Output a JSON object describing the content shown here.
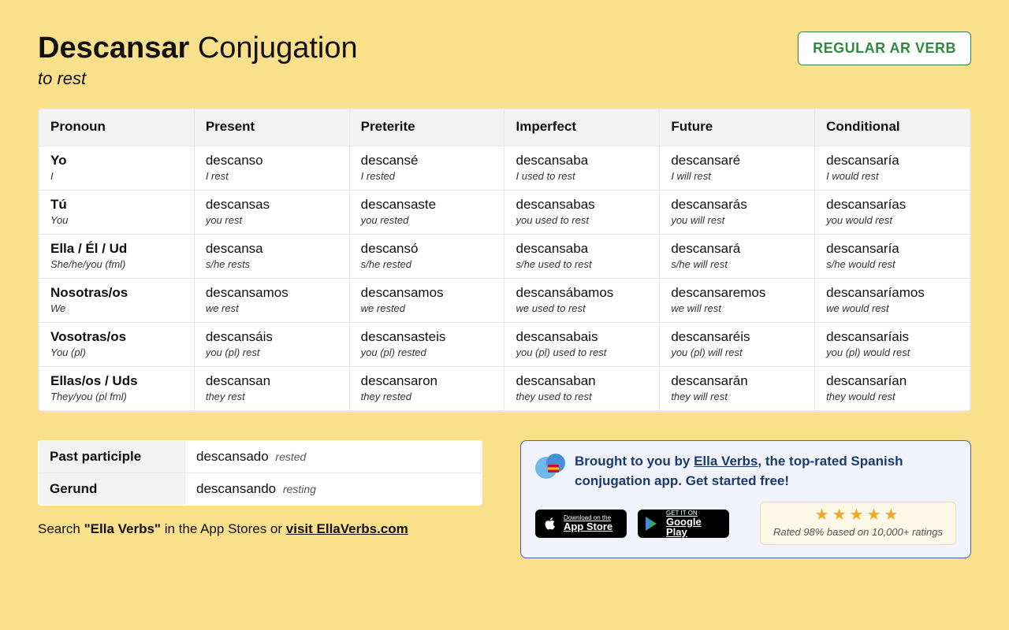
{
  "header": {
    "verb": "Descansar",
    "title_suffix": "Conjugation",
    "translation": "to rest",
    "badge": "REGULAR AR VERB"
  },
  "columns": [
    "Pronoun",
    "Present",
    "Preterite",
    "Imperfect",
    "Future",
    "Conditional"
  ],
  "rows": [
    [
      {
        "main": "Yo",
        "sub": "I"
      },
      {
        "main": "descanso",
        "sub": "I rest"
      },
      {
        "main": "descansé",
        "sub": "I rested"
      },
      {
        "main": "descansaba",
        "sub": "I used to rest"
      },
      {
        "main": "descansaré",
        "sub": "I will rest"
      },
      {
        "main": "descansaría",
        "sub": "I would rest"
      }
    ],
    [
      {
        "main": "Tú",
        "sub": "You"
      },
      {
        "main": "descansas",
        "sub": "you rest"
      },
      {
        "main": "descansaste",
        "sub": "you rested"
      },
      {
        "main": "descansabas",
        "sub": "you used to rest"
      },
      {
        "main": "descansarás",
        "sub": "you will rest"
      },
      {
        "main": "descansarías",
        "sub": "you would rest"
      }
    ],
    [
      {
        "main": "Ella / Él / Ud",
        "sub": "She/he/you (fml)"
      },
      {
        "main": "descansa",
        "sub": "s/he rests"
      },
      {
        "main": "descansó",
        "sub": "s/he rested"
      },
      {
        "main": "descansaba",
        "sub": "s/he used to rest"
      },
      {
        "main": "descansará",
        "sub": "s/he will rest"
      },
      {
        "main": "descansaría",
        "sub": "s/he would rest"
      }
    ],
    [
      {
        "main": "Nosotras/os",
        "sub": "We"
      },
      {
        "main": "descansamos",
        "sub": "we rest"
      },
      {
        "main": "descansamos",
        "sub": "we rested"
      },
      {
        "main": "descansábamos",
        "sub": "we used to rest"
      },
      {
        "main": "descansaremos",
        "sub": "we will rest"
      },
      {
        "main": "descansaríamos",
        "sub": "we would rest"
      }
    ],
    [
      {
        "main": "Vosotras/os",
        "sub": "You (pl)"
      },
      {
        "main": "descansáis",
        "sub": "you (pl) rest"
      },
      {
        "main": "descansasteis",
        "sub": "you (pl) rested"
      },
      {
        "main": "descansabais",
        "sub": "you (pl) used to rest"
      },
      {
        "main": "descansaréis",
        "sub": "you (pl) will rest"
      },
      {
        "main": "descansaríais",
        "sub": "you (pl) would rest"
      }
    ],
    [
      {
        "main": "Ellas/os / Uds",
        "sub": "They/you (pl fml)"
      },
      {
        "main": "descansan",
        "sub": "they rest"
      },
      {
        "main": "descansaron",
        "sub": "they rested"
      },
      {
        "main": "descansaban",
        "sub": "they used to rest"
      },
      {
        "main": "descansarán",
        "sub": "they will rest"
      },
      {
        "main": "descansarían",
        "sub": "they would rest"
      }
    ]
  ],
  "forms": {
    "past_participle_label": "Past participle",
    "past_participle_value": "descansado",
    "past_participle_sub": "rested",
    "gerund_label": "Gerund",
    "gerund_value": "descansando",
    "gerund_sub": "resting"
  },
  "search": {
    "prefix": "Search ",
    "bold": "\"Ella Verbs\"",
    "mid": " in the App Stores or ",
    "link": "visit EllaVerbs.com"
  },
  "promo": {
    "pre": "Brought to you by ",
    "link": "Ella Verbs",
    "post": ", the top-rated Spanish conjugation app. Get started free!",
    "appstore_l1": "Download on the",
    "appstore_l2": "App Store",
    "gplay_l1": "GET IT ON",
    "gplay_l2": "Google Play",
    "rating": "Rated 98% based on 10,000+ ratings"
  }
}
